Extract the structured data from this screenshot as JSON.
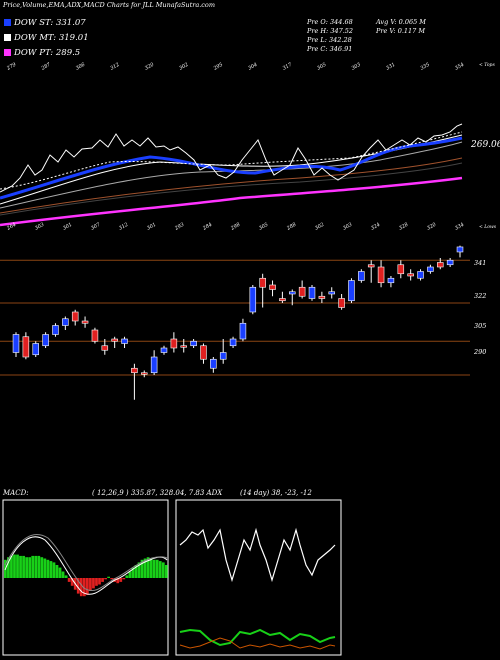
{
  "title": "Price,Volume,EMA,ADX,MACD Charts for JLL  MunafaSutra.com",
  "legend": [
    {
      "label": "DOW ST: 331.07",
      "color": "#1a3fff"
    },
    {
      "label": "DOW MT: 319.01",
      "color": "#ffffff"
    },
    {
      "label": "DOW PT: 289.5",
      "color": "#ff33ff"
    }
  ],
  "ohlc": {
    "open": "Pre  O: 344.68",
    "high": "Pre  H: 347.52",
    "low": "Pre  L: 342.28",
    "close": "Pre  C: 346.91",
    "avg_volume": "Avg V: 0.065 M",
    "prev_volume": "Pre  V: 0.117 M"
  },
  "ema_panel": {
    "top_label": "< Tops",
    "lows_label": "< Lows",
    "last_value": "269.06",
    "top_ticks": [
      "279",
      "287",
      "306",
      "312",
      "320",
      "302",
      "295",
      "304",
      "317",
      "305",
      "303",
      "331",
      "335",
      "354"
    ],
    "low_ticks": [
      "264",
      "303",
      "301",
      "307",
      "312",
      "301",
      "293",
      "284",
      "298",
      "305",
      "288",
      "302",
      "303",
      "324",
      "328",
      "320",
      "334"
    ]
  },
  "price_panel": {
    "levels": [
      "341",
      "322",
      "305",
      "290"
    ]
  },
  "macd_label": "MACD:",
  "macd_params": "( 12,26,9 ) 335.87,  328.04, 7.83 ADX",
  "adx_params": "(14  day) 38,  -23,  -12",
  "chart_data": {
    "type": "candlestick",
    "title": "Price,Volume,EMA,ADX,MACD Charts for JLL",
    "ylim": [
      270,
      350
    ],
    "price_levels": [
      341,
      322,
      305,
      290
    ],
    "candles": [
      {
        "o": 300,
        "h": 309,
        "l": 298,
        "c": 308,
        "dir": "up"
      },
      {
        "o": 307,
        "h": 309,
        "l": 297,
        "c": 298,
        "dir": "down"
      },
      {
        "o": 299,
        "h": 305,
        "l": 298,
        "c": 304,
        "dir": "up"
      },
      {
        "o": 303,
        "h": 309,
        "l": 302,
        "c": 308,
        "dir": "up"
      },
      {
        "o": 308,
        "h": 313,
        "l": 307,
        "c": 312,
        "dir": "up"
      },
      {
        "o": 312,
        "h": 316,
        "l": 310,
        "c": 315,
        "dir": "up"
      },
      {
        "o": 318,
        "h": 319,
        "l": 312,
        "c": 314,
        "dir": "down"
      },
      {
        "o": 313,
        "h": 316,
        "l": 311,
        "c": 314,
        "dir": "down"
      },
      {
        "o": 310,
        "h": 311,
        "l": 304,
        "c": 305,
        "dir": "down"
      },
      {
        "o": 303,
        "h": 306,
        "l": 299,
        "c": 301,
        "dir": "down"
      },
      {
        "o": 306,
        "h": 307,
        "l": 302,
        "c": 305,
        "dir": "down"
      },
      {
        "o": 304,
        "h": 307,
        "l": 302,
        "c": 306,
        "dir": "up"
      },
      {
        "o": 293,
        "h": 295,
        "l": 279,
        "c": 291,
        "dir": "down"
      },
      {
        "o": 291,
        "h": 292,
        "l": 289,
        "c": 291,
        "dir": "down"
      },
      {
        "o": 291,
        "h": 301,
        "l": 290,
        "c": 298,
        "dir": "up"
      },
      {
        "o": 300,
        "h": 303,
        "l": 299,
        "c": 302,
        "dir": "up"
      },
      {
        "o": 306,
        "h": 309,
        "l": 300,
        "c": 302,
        "dir": "down"
      },
      {
        "o": 303,
        "h": 306,
        "l": 300,
        "c": 303,
        "dir": "down"
      },
      {
        "o": 303,
        "h": 306,
        "l": 302,
        "c": 305,
        "dir": "up"
      },
      {
        "o": 303,
        "h": 304,
        "l": 295,
        "c": 297,
        "dir": "down"
      },
      {
        "o": 293,
        "h": 298,
        "l": 291,
        "c": 297,
        "dir": "up"
      },
      {
        "o": 297,
        "h": 306,
        "l": 295,
        "c": 300,
        "dir": "up"
      },
      {
        "o": 303,
        "h": 307,
        "l": 302,
        "c": 306,
        "dir": "up"
      },
      {
        "o": 306,
        "h": 315,
        "l": 305,
        "c": 313,
        "dir": "up"
      },
      {
        "o": 318,
        "h": 330,
        "l": 317,
        "c": 329,
        "dir": "up"
      },
      {
        "o": 333,
        "h": 335,
        "l": 320,
        "c": 329,
        "dir": "down"
      },
      {
        "o": 328,
        "h": 332,
        "l": 325,
        "c": 330,
        "dir": "down"
      },
      {
        "o": 324,
        "h": 327,
        "l": 322,
        "c": 323,
        "dir": "down"
      },
      {
        "o": 326,
        "h": 328,
        "l": 321,
        "c": 327,
        "dir": "up"
      },
      {
        "o": 329,
        "h": 332,
        "l": 324,
        "c": 325,
        "dir": "down"
      },
      {
        "o": 324,
        "h": 330,
        "l": 323,
        "c": 329,
        "dir": "up"
      },
      {
        "o": 325,
        "h": 327,
        "l": 322,
        "c": 324,
        "dir": "down"
      },
      {
        "o": 327,
        "h": 329,
        "l": 324,
        "c": 326,
        "dir": "up"
      },
      {
        "o": 324,
        "h": 326,
        "l": 319,
        "c": 320,
        "dir": "down"
      },
      {
        "o": 323,
        "h": 333,
        "l": 322,
        "c": 332,
        "dir": "up"
      },
      {
        "o": 332,
        "h": 337,
        "l": 331,
        "c": 336,
        "dir": "up"
      },
      {
        "o": 339,
        "h": 341,
        "l": 331,
        "c": 338,
        "dir": "down"
      },
      {
        "o": 338,
        "h": 341,
        "l": 329,
        "c": 331,
        "dir": "down"
      },
      {
        "o": 331,
        "h": 334,
        "l": 329,
        "c": 333,
        "dir": "up"
      },
      {
        "o": 339,
        "h": 341,
        "l": 333,
        "c": 335,
        "dir": "down"
      },
      {
        "o": 335,
        "h": 337,
        "l": 332,
        "c": 334,
        "dir": "down"
      },
      {
        "o": 333,
        "h": 337,
        "l": 332,
        "c": 336,
        "dir": "up"
      },
      {
        "o": 336,
        "h": 339,
        "l": 335,
        "c": 338,
        "dir": "up"
      },
      {
        "o": 340,
        "h": 342,
        "l": 337,
        "c": 338,
        "dir": "down"
      },
      {
        "o": 339,
        "h": 342,
        "l": 338,
        "c": 341,
        "dir": "up"
      },
      {
        "o": 344.68,
        "h": 347.52,
        "l": 342.28,
        "c": 346.91,
        "dir": "up"
      }
    ]
  }
}
